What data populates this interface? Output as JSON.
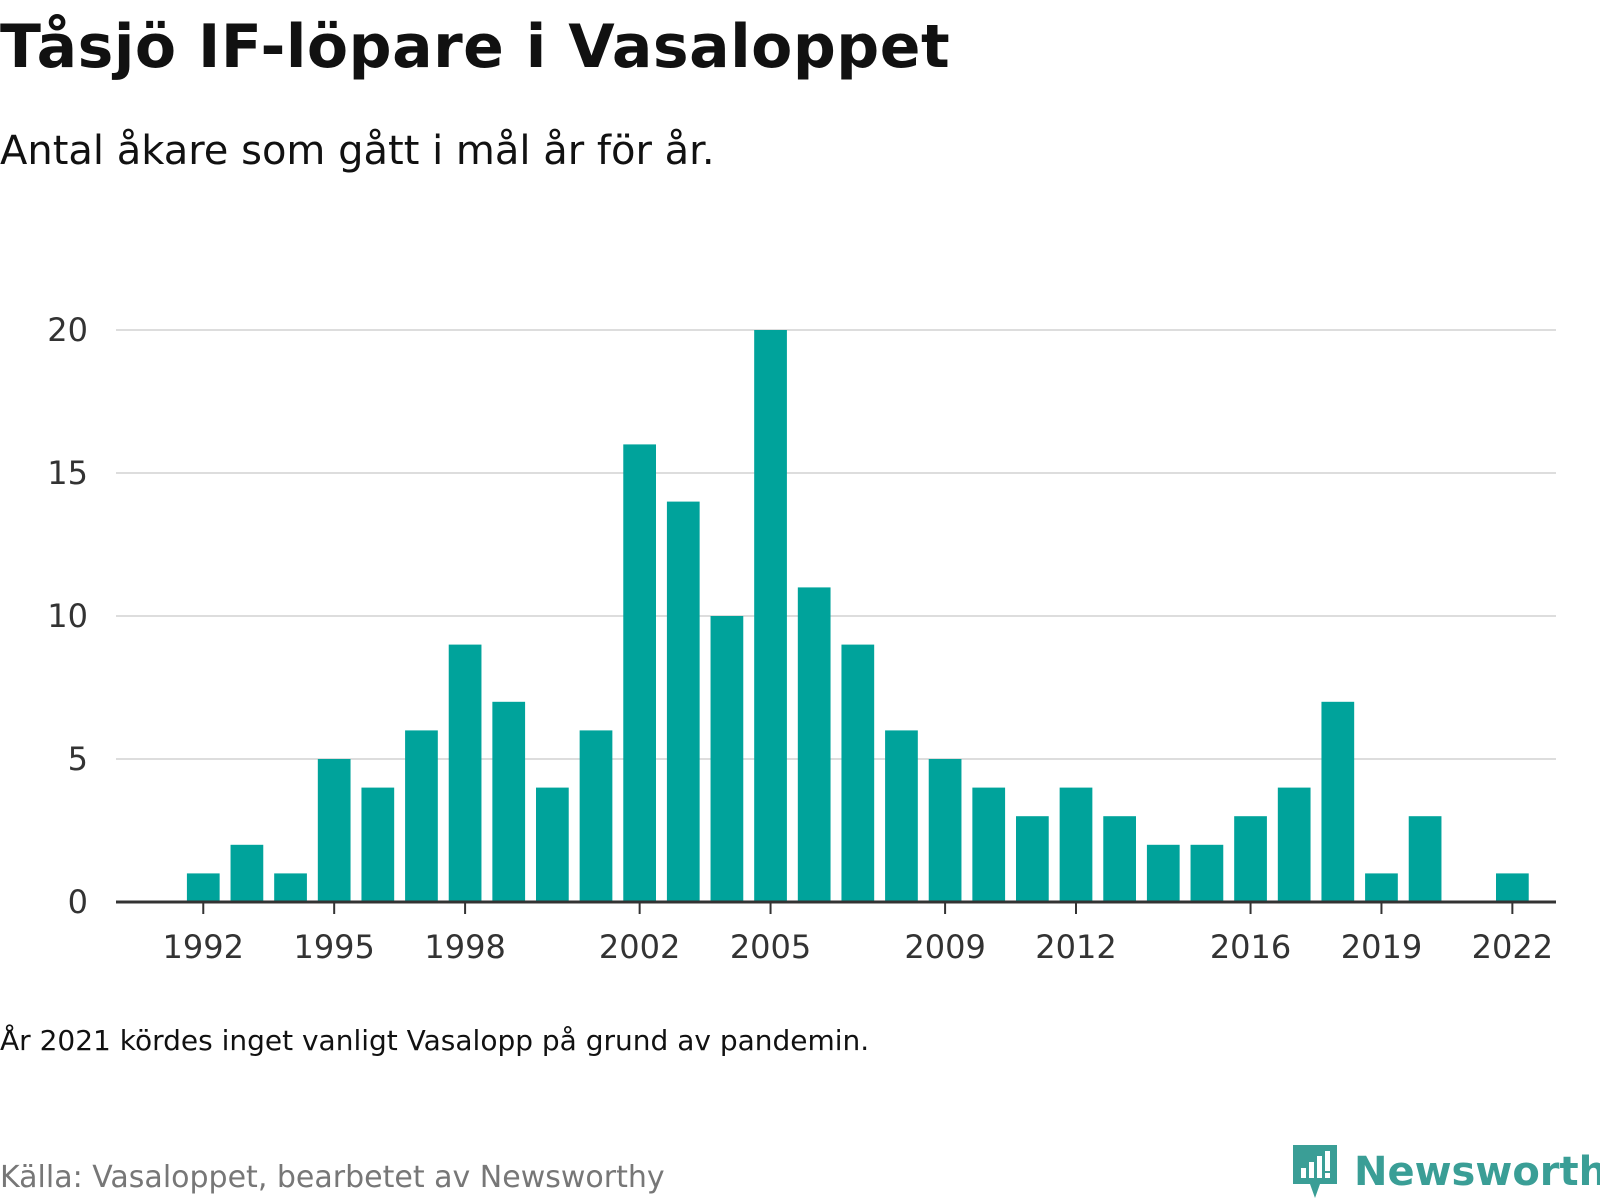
{
  "title": "Tåsjö IF-löpare i Vasaloppet",
  "subtitle": "Antal åkare som gått i mål år för år.",
  "note": "År 2021 kördes inget vanligt Vasalopp på grund av pandemin.",
  "source": "Källa: Vasaloppet, bearbetet av Newsworthy",
  "brand": {
    "name": "Newsworthy",
    "icon": "newsworthy-logo-icon",
    "color": "#3a9e96"
  },
  "chart_data": {
    "type": "bar",
    "title": "",
    "xlabel": "",
    "ylabel": "",
    "ylim": [
      0,
      20
    ],
    "yticks": [
      0,
      5,
      10,
      15,
      20
    ],
    "xticks": [
      1992,
      1995,
      1998,
      2002,
      2005,
      2009,
      2012,
      2016,
      2019,
      2022
    ],
    "xlim": [
      1990,
      2023
    ],
    "grid": "horizontal",
    "bar_color": "#00a39b",
    "x": [
      1992,
      1993,
      1994,
      1995,
      1996,
      1997,
      1998,
      1999,
      2000,
      2001,
      2002,
      2003,
      2004,
      2005,
      2006,
      2007,
      2008,
      2009,
      2010,
      2011,
      2012,
      2013,
      2014,
      2015,
      2016,
      2017,
      2018,
      2019,
      2020,
      2022
    ],
    "values": [
      1,
      2,
      1,
      5,
      4,
      6,
      9,
      7,
      4,
      6,
      16,
      14,
      10,
      20,
      11,
      9,
      6,
      5,
      4,
      3,
      4,
      3,
      2,
      2,
      3,
      4,
      7,
      1,
      3,
      1
    ]
  }
}
